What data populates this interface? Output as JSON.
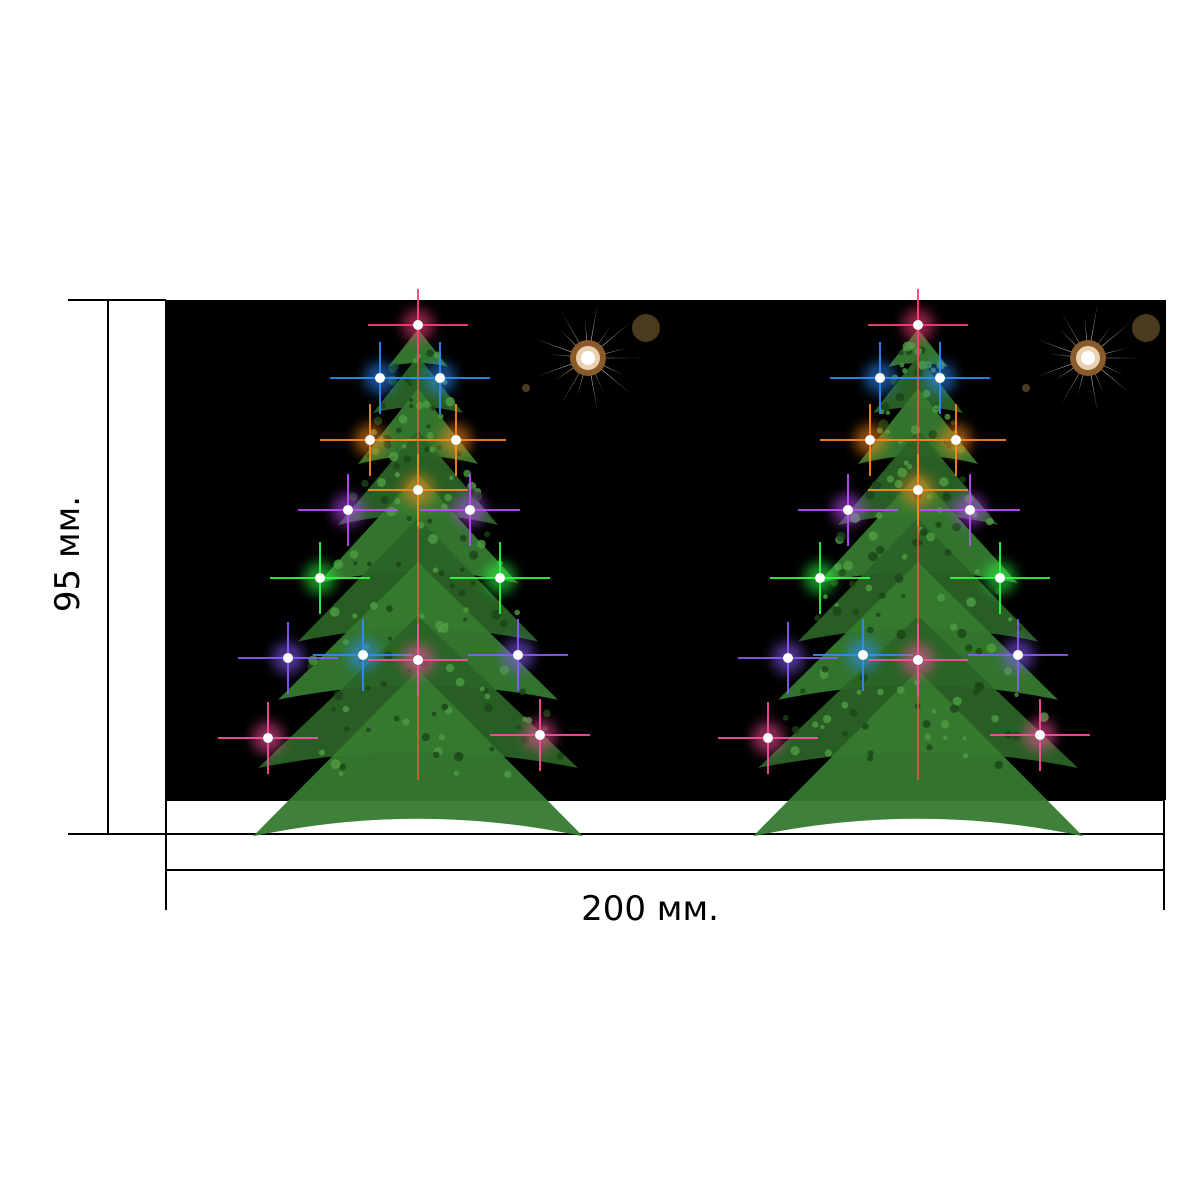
{
  "dimensions": {
    "width_label": "200 мм.",
    "height_label": "95 мм."
  },
  "artwork": {
    "background": "#000000",
    "trees": [
      {
        "side": "left",
        "name": "christmas-tree-left"
      },
      {
        "side": "right",
        "name": "christmas-tree-right"
      }
    ],
    "light_colors": [
      "#ff3d7a",
      "#2f8cff",
      "#ff8a1e",
      "#c04dff",
      "#2dff4a",
      "#8a5cff",
      "#ff4fa0"
    ],
    "tree_color": "#2e6b2a",
    "ornament": "star-burst"
  },
  "colors": {
    "line": "#000000",
    "paper": "#ffffff"
  }
}
